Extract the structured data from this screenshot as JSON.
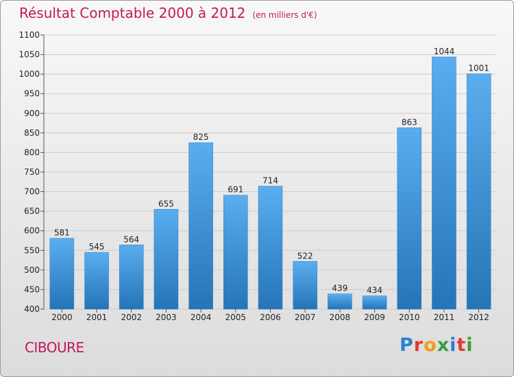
{
  "header": {
    "title": "Résultat Comptable 2000 à 2012",
    "unit": "(en milliers d'€)"
  },
  "footer": {
    "commune": "CIBOURE",
    "brand_letters": [
      "P",
      "r",
      "o",
      "x",
      "i",
      "t",
      "i"
    ],
    "brand_colors": [
      "#2e7fd0",
      "#e23b2e",
      "#f39c12",
      "#3a9d3a",
      "#2e7fd0",
      "#e23b2e",
      "#3a9d3a"
    ]
  },
  "colors": {
    "title": "#c2185b",
    "bar_top": "#5aaef0",
    "bar_bottom": "#2574b8",
    "grid": "#cccccc"
  },
  "chart_data": {
    "type": "bar",
    "title": "Résultat Comptable 2000 à 2012",
    "subtitle": "(en milliers d'€)",
    "xlabel": "",
    "ylabel": "",
    "categories": [
      "2000",
      "2001",
      "2002",
      "2003",
      "2004",
      "2005",
      "2006",
      "2007",
      "2008",
      "2009",
      "2010",
      "2011",
      "2012"
    ],
    "values": [
      581,
      545,
      564,
      655,
      825,
      691,
      714,
      522,
      439,
      434,
      863,
      1044,
      1001
    ],
    "ylim": [
      400,
      1100
    ],
    "yticks": [
      400,
      450,
      500,
      550,
      600,
      650,
      700,
      750,
      800,
      850,
      900,
      950,
      1000,
      1050,
      1100
    ],
    "grid": true
  }
}
